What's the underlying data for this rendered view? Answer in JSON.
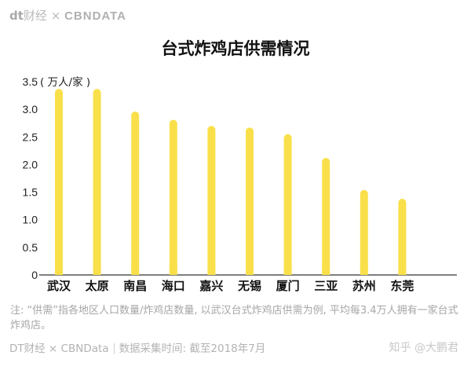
{
  "header": {
    "brand_dt": "dt",
    "brand_cj": "财经",
    "brand_x": "×",
    "brand_cbn": "CBNDATA"
  },
  "chart_data": {
    "type": "bar",
    "title": "台式炸鸡店供需情况",
    "ylabel": "( 万人/家 )",
    "categories": [
      "武汉",
      "太原",
      "南昌",
      "海口",
      "嘉兴",
      "无锡",
      "厦门",
      "三亚",
      "苏州",
      "东莞"
    ],
    "values": [
      3.37,
      3.37,
      2.96,
      2.81,
      2.7,
      2.67,
      2.55,
      2.12,
      1.54,
      1.38
    ],
    "ylim": [
      0,
      3.5
    ],
    "yticks": [
      "0",
      "0.5",
      "1.0",
      "1.5",
      "2.0",
      "2.5",
      "3.0",
      "3.5"
    ],
    "grid": false,
    "bar_color": "#f9e04b"
  },
  "note": "注: “供需”指各地区人口数量/炸鸡店数量, 以武汉台式炸鸡店供需为例, 平均每3.4万人拥有一家台式炸鸡店。",
  "footer": {
    "brand": "DT财经 × CBNData",
    "source": "数据采集时间: 截至2018年7月"
  },
  "watermark": "知乎 @大鹏君"
}
